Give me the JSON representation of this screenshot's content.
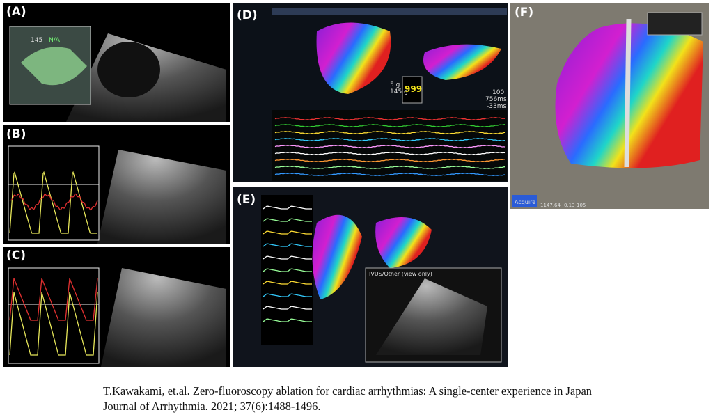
{
  "panels": [
    {
      "label": "(A)",
      "texts": [
        "145",
        "N/A"
      ]
    },
    {
      "label": "(B)"
    },
    {
      "label": "(C)"
    },
    {
      "label": "(D)",
      "texts": [
        "5 g",
        "145 g",
        "999",
        "100",
        "756ms",
        "-33ms"
      ]
    },
    {
      "label": "(E)",
      "texts": [
        "IVUS/Other (view only)"
      ]
    },
    {
      "label": "(F)",
      "texts": [
        "Acquire",
        "1147.64",
        "0.13",
        "105"
      ]
    }
  ],
  "citation": {
    "line1": "T.Kawakami, et.al.  Zero-fluoroscopy ablation for cardiac arrhythmias: A single-center experience in Japan",
    "line2": "Journal of Arrhythmia. 2021; 37(6):1488-1496."
  }
}
